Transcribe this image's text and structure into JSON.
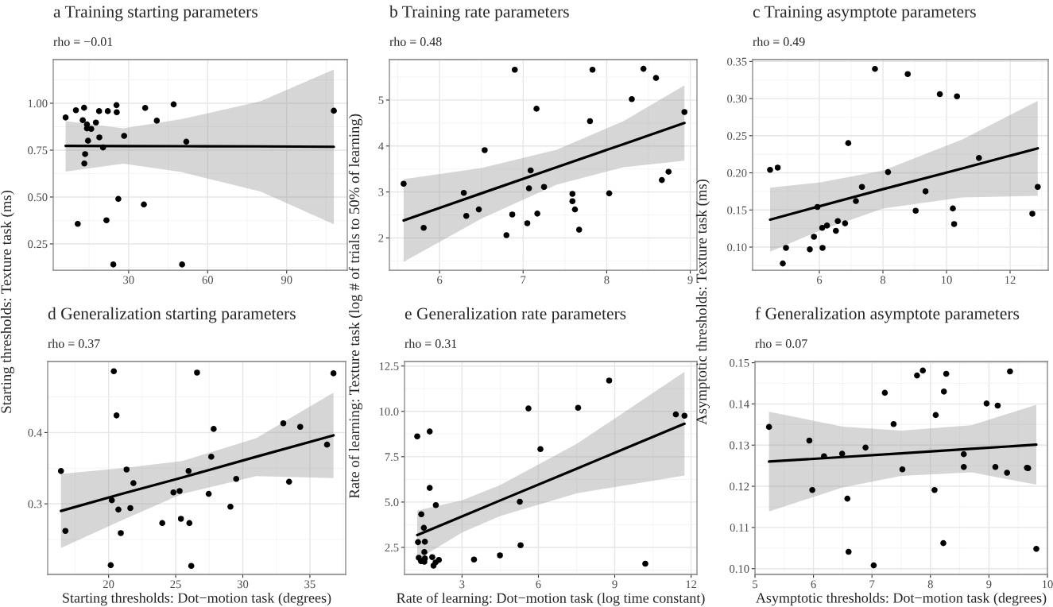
{
  "chart_data": [
    {
      "type": "scatter",
      "title": "a Training starting parameters",
      "subtitle": "rho = −0.01",
      "marker": "circle",
      "line_style": "solid",
      "grid": true,
      "xlim": [
        1.4,
        113
      ],
      "ylim": [
        0.11,
        1.233
      ],
      "xticks": [
        30,
        60,
        90
      ],
      "yticks": [
        0.25,
        {
          "value": 0.5,
          "label": "0.50"
        },
        0.75,
        {
          "value": 1.0,
          "label": "1.00"
        }
      ],
      "series": [
        {
          "color": "#000000",
          "x": [
            6.1,
            10.0,
            13.1,
            12.6,
            14.2,
            14.2,
            15.8,
            17.6,
            18.8,
            22.1,
            25.4,
            25.5,
            36.3,
            47.1,
            40.7,
            107.9,
            28.3,
            18.9,
            14.6,
            20.3,
            13.5,
            13.2,
            51.9,
            26.1,
            35.8,
            10.7,
            21.6,
            24.2,
            50.3
          ],
          "values": [
            0.924,
            0.963,
            0.976,
            0.91,
            0.887,
            0.866,
            0.863,
            0.897,
            0.958,
            0.958,
            0.99,
            0.952,
            0.975,
            0.994,
            0.907,
            0.96,
            0.826,
            0.818,
            0.8,
            0.764,
            0.729,
            0.679,
            0.795,
            0.49,
            0.46,
            0.357,
            0.376,
            0.14,
            0.14
          ]
        },
        {
          "type": "line",
          "marker": "none",
          "color": "#000000",
          "x": [
            6.1,
            28,
            50,
            80,
            107.9
          ],
          "values": [
            0.773,
            0.772,
            0.771,
            0.77,
            0.768
          ],
          "upper": [
            0.905,
            0.866,
            0.915,
            1.01,
            1.18
          ],
          "lower": [
            0.635,
            0.678,
            0.633,
            0.53,
            0.355
          ]
        }
      ]
    },
    {
      "type": "scatter",
      "title": "b Training rate parameters",
      "subtitle": "rho = 0.48",
      "marker": "circle",
      "line_style": "solid",
      "grid": true,
      "xlim": [
        5.4,
        9.08
      ],
      "ylim": [
        1.3,
        5.88
      ],
      "xticks": [
        6,
        7,
        8,
        9
      ],
      "yticks": [
        2,
        3,
        4,
        5
      ],
      "series": [
        {
          "color": "#000000",
          "x": [
            5.57,
            5.81,
            6.29,
            6.32,
            6.47,
            6.54,
            6.9,
            6.87,
            6.8,
            7.05,
            7.09,
            7.07,
            7.25,
            7.16,
            7.17,
            7.59,
            7.59,
            7.62,
            7.67,
            7.83,
            7.8,
            8.03,
            8.3,
            8.44,
            8.59,
            8.66,
            8.74,
            8.93
          ],
          "values": [
            3.18,
            2.22,
            2.98,
            2.48,
            2.62,
            3.91,
            5.66,
            2.51,
            2.06,
            2.32,
            3.47,
            3.08,
            3.11,
            4.81,
            2.53,
            2.96,
            2.8,
            2.62,
            2.18,
            5.66,
            4.54,
            2.97,
            5.02,
            5.68,
            5.48,
            3.26,
            3.44,
            4.74
          ]
        },
        {
          "type": "line",
          "marker": "none",
          "color": "#000000",
          "x": [
            5.57,
            6.5,
            7.4,
            8.2,
            8.93
          ],
          "values": [
            2.38,
            2.97,
            3.54,
            4.04,
            4.5
          ],
          "upper": [
            3.28,
            3.52,
            3.92,
            4.54,
            5.32
          ],
          "lower": [
            1.48,
            2.42,
            3.16,
            3.54,
            3.68
          ]
        }
      ]
    },
    {
      "type": "scatter",
      "title": "c Training asymptote parameters",
      "subtitle": "rho = 0.49",
      "marker": "circle",
      "line_style": "solid",
      "grid": true,
      "xlim": [
        3.9,
        13.2
      ],
      "ylim": [
        0.069,
        0.3525
      ],
      "xticks": [
        6,
        8,
        10,
        12
      ],
      "yticks": [
        {
          "value": 0.1,
          "label": "0.10"
        },
        0.15,
        {
          "value": 0.2,
          "label": "0.20"
        },
        0.25,
        {
          "value": 0.3,
          "label": "0.30"
        },
        0.35
      ],
      "series": [
        {
          "color": "#000000",
          "x": [
            4.45,
            4.69,
            5.94,
            5.83,
            6.09,
            6.24,
            6.52,
            6.58,
            6.81,
            6.91,
            7.15,
            7.34,
            7.75,
            8.16,
            8.78,
            9.03,
            9.34,
            9.79,
            10.33,
            10.2,
            10.24,
            11.02,
            12.7,
            12.87,
            4.85,
            4.95,
            5.7,
            6.1
          ],
          "values": [
            0.204,
            0.207,
            0.154,
            0.114,
            0.126,
            0.129,
            0.122,
            0.135,
            0.132,
            0.24,
            0.162,
            0.181,
            0.34,
            0.201,
            0.333,
            0.149,
            0.175,
            0.306,
            0.303,
            0.152,
            0.131,
            0.22,
            0.145,
            0.181,
            0.078,
            0.099,
            0.097,
            0.099
          ]
        },
        {
          "type": "line",
          "marker": "none",
          "color": "#000000",
          "x": [
            4.45,
            6,
            8,
            10.5,
            12.87
          ],
          "values": [
            0.137,
            0.155,
            0.178,
            0.206,
            0.233
          ],
          "upper": [
            0.18,
            0.187,
            0.203,
            0.245,
            0.297
          ],
          "lower": [
            0.094,
            0.122,
            0.152,
            0.167,
            0.169
          ]
        }
      ]
    },
    {
      "type": "scatter",
      "title": "d Generalization starting parameters",
      "subtitle": "rho = 0.37",
      "xlabel": "Starting thresholds: Dot−motion task (degrees)",
      "ylabel": "Starting thresholds: Texture task (ms)",
      "marker": "circle",
      "line_style": "solid",
      "grid": true,
      "xlim": [
        15.46,
        37.67
      ],
      "ylim": [
        0.201,
        0.4996
      ],
      "xticks": [
        20,
        25,
        30,
        35
      ],
      "yticks": [
        0.3,
        0.4
      ],
      "series": [
        {
          "color": "#000000",
          "x": [
            16.45,
            16.78,
            20.39,
            20.59,
            20.24,
            20.73,
            20.91,
            20.16,
            21.34,
            21.62,
            21.85,
            24.0,
            24.83,
            25.29,
            25.39,
            25.96,
            26.02,
            26.16,
            26.59,
            27.46,
            27.65,
            27.83,
            29.08,
            29.51,
            33.02,
            33.45,
            34.28,
            36.28,
            36.76
          ],
          "values": [
            0.346,
            0.262,
            0.486,
            0.424,
            0.305,
            0.292,
            0.259,
            0.214,
            0.348,
            0.294,
            0.329,
            0.273,
            0.316,
            0.318,
            0.279,
            0.346,
            0.273,
            0.213,
            0.484,
            0.314,
            0.366,
            0.405,
            0.296,
            0.335,
            0.413,
            0.331,
            0.408,
            0.383,
            0.483
          ]
        },
        {
          "type": "line",
          "marker": "none",
          "color": "#000000",
          "x": [
            16.45,
            21,
            25.5,
            31,
            36.76
          ],
          "values": [
            0.29,
            0.314,
            0.337,
            0.366,
            0.396
          ],
          "upper": [
            0.342,
            0.35,
            0.36,
            0.392,
            0.456
          ],
          "lower": [
            0.238,
            0.277,
            0.314,
            0.339,
            0.336
          ]
        }
      ]
    },
    {
      "type": "scatter",
      "title": "e Generalization rate parameters",
      "subtitle": "rho = 0.31",
      "xlabel": "Rate of learning: Dot−motion task (log time constant)",
      "ylabel": "Rate of learning: Texture task (log # of trials to 50% of learning)",
      "marker": "circle",
      "line_style": "solid",
      "grid": true,
      "xlim": [
        0.74,
        12.23
      ],
      "ylim": [
        1.01,
        12.75
      ],
      "xticks": [
        3,
        6,
        9,
        12
      ],
      "yticks": [
        2.5,
        {
          "value": 5,
          "label": "5.0"
        },
        7.5,
        {
          "value": 10,
          "label": "10.0"
        },
        12.5
      ],
      "series": [
        {
          "color": "#000000",
          "x": [
            1.24,
            1.73,
            1.73,
            1.97,
            1.4,
            1.5,
            1.27,
            1.54,
            1.52,
            1.3,
            1.39,
            1.52,
            1.54,
            1.83,
            1.88,
            2.09,
            1.96,
            3.47,
            4.49,
            5.3,
            5.27,
            5.61,
            6.08,
            7.56,
            8.78,
            10.2,
            11.4,
            11.74
          ],
          "values": [
            8.62,
            8.89,
            5.78,
            4.83,
            4.33,
            3.58,
            2.79,
            2.81,
            2.24,
            1.93,
            1.74,
            1.71,
            1.89,
            1.96,
            1.49,
            1.81,
            1.67,
            1.83,
            2.06,
            2.62,
            5.02,
            10.16,
            7.92,
            10.2,
            11.7,
            1.6,
            9.83,
            9.76
          ]
        },
        {
          "type": "line",
          "marker": "none",
          "color": "#000000",
          "x": [
            1.24,
            3,
            4.5,
            7.5,
            11.74
          ],
          "values": [
            3.18,
            4.21,
            5.09,
            6.84,
            9.32
          ],
          "upper": [
            4.54,
            5.1,
            5.94,
            8.2,
            12.18
          ],
          "lower": [
            1.82,
            3.32,
            4.23,
            5.48,
            6.46
          ]
        }
      ]
    },
    {
      "type": "scatter",
      "title": "f Generalization asymptote parameters",
      "subtitle": "rho = 0.07",
      "xlabel": "Asymptotic thresholds: Dot−motion task (degrees)",
      "ylabel": "Asymptotic thresholds: Texture task (ms)",
      "marker": "circle",
      "line_style": "solid",
      "grid": true,
      "xlim": [
        5,
        10
      ],
      "ylim": [
        0.0986,
        0.1503
      ],
      "xticks": [
        5,
        6,
        7,
        8,
        9,
        10
      ],
      "yticks": [
        {
          "value": 0.1,
          "label": "0.10"
        },
        0.11,
        0.12,
        0.13,
        0.14,
        0.15
      ],
      "series": [
        {
          "color": "#000000",
          "x": [
            5.24,
            5.93,
            5.98,
            6.18,
            6.49,
            6.89,
            6.58,
            6.6,
            7.03,
            7.22,
            7.37,
            7.52,
            7.77,
            7.87,
            8.07,
            8.09,
            8.22,
            8.23,
            8.27,
            8.57,
            8.57,
            8.96,
            9.11,
            9.15,
            9.31,
            9.36,
            9.65,
            9.67,
            9.81
          ],
          "values": [
            0.1344,
            0.1311,
            0.1191,
            0.1273,
            0.1279,
            0.1294,
            0.117,
            0.1041,
            0.1008,
            0.1427,
            0.1351,
            0.1241,
            0.1469,
            0.1481,
            0.1191,
            0.1373,
            0.1062,
            0.143,
            0.1473,
            0.1278,
            0.1247,
            0.1401,
            0.1247,
            0.1396,
            0.1233,
            0.1479,
            0.1245,
            0.1244,
            0.1048
          ]
        },
        {
          "type": "line",
          "marker": "none",
          "color": "#000000",
          "x": [
            5.24,
            6.5,
            7.5,
            8.7,
            9.81
          ],
          "values": [
            0.126,
            0.1271,
            0.128,
            0.1291,
            0.1301
          ],
          "upper": [
            0.1381,
            0.1345,
            0.1335,
            0.1348,
            0.1398
          ],
          "lower": [
            0.1139,
            0.1197,
            0.1225,
            0.1234,
            0.1204
          ]
        }
      ]
    }
  ]
}
